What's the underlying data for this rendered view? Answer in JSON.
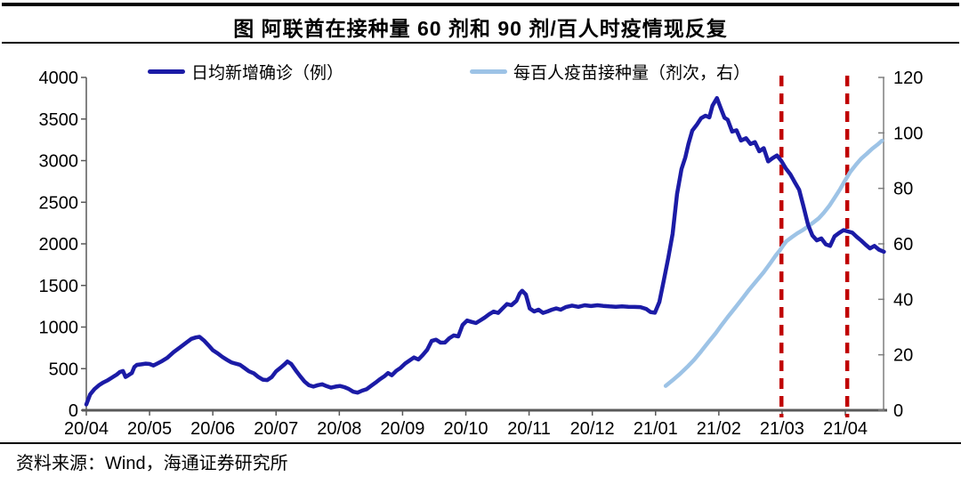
{
  "header": {
    "title": "图 阿联酋在接种量 60 剂和 90 剂/百人时疫情现反复"
  },
  "footer": {
    "source": "资料来源：Wind，海通证券研究所"
  },
  "colors": {
    "confirmed_line": "#1b1ba6",
    "vaccine_line": "#9dc3e6",
    "marker_line": "#c00000",
    "axis": "#595959",
    "right_axis": "#7f7f7f",
    "text": "#000000"
  },
  "chart_data": {
    "type": "line",
    "title": "图 阿联酋在接种量 60 剂和 90 剂/百人时疫情现反复",
    "x_axis": {
      "tick_labels": [
        "20/04",
        "20/05",
        "20/06",
        "20/07",
        "20/08",
        "20/09",
        "20/10",
        "20/11",
        "20/12",
        "21/01",
        "21/02",
        "21/03",
        "21/04"
      ],
      "range": [
        0,
        12.61
      ],
      "grid": false
    },
    "y_left": {
      "ticks": [
        0,
        500,
        1000,
        1500,
        2000,
        2500,
        3000,
        3500,
        4000
      ],
      "range": [
        0,
        4000
      ]
    },
    "y_right": {
      "ticks": [
        0,
        20,
        40,
        60,
        80,
        100,
        120
      ],
      "range": [
        0,
        120
      ]
    },
    "legend_position": "top",
    "markers": [
      {
        "type": "vline",
        "x": 10.99,
        "note": "at 21/03, ~60 doses per 100"
      },
      {
        "type": "vline",
        "x": 12.03,
        "note": "at 21/04, ~90 doses per 100"
      }
    ],
    "series": [
      {
        "name": "日均新增确诊（例）",
        "axis": "left",
        "color": "#1b1ba6",
        "points": [
          [
            0.0,
            70
          ],
          [
            0.06,
            190
          ],
          [
            0.13,
            255
          ],
          [
            0.2,
            300
          ],
          [
            0.27,
            335
          ],
          [
            0.34,
            362
          ],
          [
            0.41,
            395
          ],
          [
            0.48,
            428
          ],
          [
            0.53,
            460
          ],
          [
            0.58,
            472
          ],
          [
            0.62,
            400
          ],
          [
            0.66,
            418
          ],
          [
            0.72,
            448
          ],
          [
            0.76,
            520
          ],
          [
            0.8,
            545
          ],
          [
            0.87,
            552
          ],
          [
            0.94,
            560
          ],
          [
            1.0,
            556
          ],
          [
            1.06,
            538
          ],
          [
            1.13,
            565
          ],
          [
            1.2,
            592
          ],
          [
            1.28,
            630
          ],
          [
            1.38,
            698
          ],
          [
            1.48,
            755
          ],
          [
            1.58,
            812
          ],
          [
            1.66,
            858
          ],
          [
            1.73,
            875
          ],
          [
            1.79,
            882
          ],
          [
            1.86,
            838
          ],
          [
            1.93,
            782
          ],
          [
            2.0,
            722
          ],
          [
            2.07,
            688
          ],
          [
            2.15,
            642
          ],
          [
            2.22,
            608
          ],
          [
            2.29,
            576
          ],
          [
            2.36,
            560
          ],
          [
            2.43,
            547
          ],
          [
            2.5,
            508
          ],
          [
            2.57,
            468
          ],
          [
            2.65,
            443
          ],
          [
            2.72,
            400
          ],
          [
            2.79,
            368
          ],
          [
            2.86,
            363
          ],
          [
            2.93,
            398
          ],
          [
            3.0,
            468
          ],
          [
            3.07,
            510
          ],
          [
            3.14,
            556
          ],
          [
            3.18,
            586
          ],
          [
            3.24,
            556
          ],
          [
            3.31,
            480
          ],
          [
            3.38,
            410
          ],
          [
            3.45,
            345
          ],
          [
            3.52,
            300
          ],
          [
            3.59,
            285
          ],
          [
            3.66,
            302
          ],
          [
            3.73,
            312
          ],
          [
            3.8,
            290
          ],
          [
            3.87,
            272
          ],
          [
            3.94,
            284
          ],
          [
            4.01,
            292
          ],
          [
            4.08,
            278
          ],
          [
            4.15,
            256
          ],
          [
            4.22,
            222
          ],
          [
            4.29,
            212
          ],
          [
            4.36,
            235
          ],
          [
            4.43,
            252
          ],
          [
            4.5,
            292
          ],
          [
            4.57,
            330
          ],
          [
            4.64,
            372
          ],
          [
            4.71,
            408
          ],
          [
            4.77,
            447
          ],
          [
            4.83,
            420
          ],
          [
            4.9,
            474
          ],
          [
            4.97,
            510
          ],
          [
            5.04,
            562
          ],
          [
            5.11,
            598
          ],
          [
            5.18,
            634
          ],
          [
            5.25,
            610
          ],
          [
            5.32,
            665
          ],
          [
            5.39,
            727
          ],
          [
            5.46,
            833
          ],
          [
            5.53,
            848
          ],
          [
            5.6,
            813
          ],
          [
            5.67,
            814
          ],
          [
            5.74,
            866
          ],
          [
            5.81,
            900
          ],
          [
            5.88,
            888
          ],
          [
            5.95,
            1026
          ],
          [
            6.02,
            1078
          ],
          [
            6.09,
            1062
          ],
          [
            6.16,
            1048
          ],
          [
            6.23,
            1080
          ],
          [
            6.3,
            1114
          ],
          [
            6.37,
            1154
          ],
          [
            6.44,
            1186
          ],
          [
            6.51,
            1170
          ],
          [
            6.58,
            1222
          ],
          [
            6.65,
            1276
          ],
          [
            6.72,
            1262
          ],
          [
            6.8,
            1316
          ],
          [
            6.85,
            1400
          ],
          [
            6.89,
            1436
          ],
          [
            6.95,
            1390
          ],
          [
            7.01,
            1224
          ],
          [
            7.08,
            1187
          ],
          [
            7.15,
            1209
          ],
          [
            7.22,
            1170
          ],
          [
            7.29,
            1187
          ],
          [
            7.36,
            1209
          ],
          [
            7.43,
            1223
          ],
          [
            7.5,
            1209
          ],
          [
            7.58,
            1240
          ],
          [
            7.68,
            1258
          ],
          [
            7.78,
            1243
          ],
          [
            7.88,
            1262
          ],
          [
            7.98,
            1252
          ],
          [
            8.08,
            1262
          ],
          [
            8.17,
            1255
          ],
          [
            8.27,
            1248
          ],
          [
            8.37,
            1244
          ],
          [
            8.47,
            1248
          ],
          [
            8.57,
            1244
          ],
          [
            8.67,
            1242
          ],
          [
            8.76,
            1240
          ],
          [
            8.85,
            1218
          ],
          [
            8.92,
            1180
          ],
          [
            8.99,
            1172
          ],
          [
            9.06,
            1300
          ],
          [
            9.13,
            1560
          ],
          [
            9.2,
            1830
          ],
          [
            9.27,
            2120
          ],
          [
            9.34,
            2600
          ],
          [
            9.41,
            2900
          ],
          [
            9.47,
            3040
          ],
          [
            9.52,
            3200
          ],
          [
            9.58,
            3360
          ],
          [
            9.65,
            3430
          ],
          [
            9.72,
            3510
          ],
          [
            9.79,
            3540
          ],
          [
            9.85,
            3520
          ],
          [
            9.9,
            3660
          ],
          [
            9.97,
            3752
          ],
          [
            10.03,
            3630
          ],
          [
            10.09,
            3515
          ],
          [
            10.14,
            3492
          ],
          [
            10.21,
            3350
          ],
          [
            10.28,
            3365
          ],
          [
            10.35,
            3242
          ],
          [
            10.43,
            3270
          ],
          [
            10.5,
            3200
          ],
          [
            10.57,
            3222
          ],
          [
            10.64,
            3112
          ],
          [
            10.71,
            3150
          ],
          [
            10.78,
            2990
          ],
          [
            10.85,
            3030
          ],
          [
            10.92,
            3062
          ],
          [
            10.99,
            2995
          ],
          [
            11.06,
            2905
          ],
          [
            11.13,
            2835
          ],
          [
            11.2,
            2742
          ],
          [
            11.27,
            2650
          ],
          [
            11.34,
            2445
          ],
          [
            11.41,
            2230
          ],
          [
            11.48,
            2100
          ],
          [
            11.55,
            2042
          ],
          [
            11.62,
            2065
          ],
          [
            11.69,
            1995
          ],
          [
            11.76,
            1975
          ],
          [
            11.83,
            2090
          ],
          [
            11.9,
            2130
          ],
          [
            11.97,
            2165
          ],
          [
            12.04,
            2150
          ],
          [
            12.11,
            2135
          ],
          [
            12.18,
            2085
          ],
          [
            12.25,
            2040
          ],
          [
            12.32,
            1990
          ],
          [
            12.39,
            1945
          ],
          [
            12.46,
            1975
          ],
          [
            12.53,
            1930
          ],
          [
            12.61,
            1905
          ]
        ]
      },
      {
        "name": "每百人疫苗接种量（剂次，右）",
        "axis": "right",
        "color": "#9dc3e6",
        "points": [
          [
            9.16,
            8.8
          ],
          [
            9.27,
            10.8
          ],
          [
            9.38,
            13.0
          ],
          [
            9.5,
            15.6
          ],
          [
            9.61,
            18.2
          ],
          [
            9.72,
            21.2
          ],
          [
            9.83,
            24.4
          ],
          [
            9.95,
            27.8
          ],
          [
            10.03,
            30.3
          ],
          [
            10.14,
            33.6
          ],
          [
            10.26,
            37.0
          ],
          [
            10.37,
            40.2
          ],
          [
            10.48,
            43.5
          ],
          [
            10.59,
            46.5
          ],
          [
            10.71,
            49.8
          ],
          [
            10.82,
            53.2
          ],
          [
            10.9,
            55.8
          ],
          [
            10.96,
            57.5
          ],
          [
            11.02,
            59.5
          ],
          [
            11.07,
            61.0
          ],
          [
            11.16,
            62.5
          ],
          [
            11.24,
            63.8
          ],
          [
            11.33,
            65.0
          ],
          [
            11.41,
            66.3
          ],
          [
            11.49,
            67.6
          ],
          [
            11.58,
            69.2
          ],
          [
            11.66,
            71.2
          ],
          [
            11.75,
            73.8
          ],
          [
            11.83,
            76.6
          ],
          [
            11.92,
            79.8
          ],
          [
            12.0,
            83.0
          ],
          [
            12.08,
            86.0
          ],
          [
            12.17,
            88.6
          ],
          [
            12.25,
            90.7
          ],
          [
            12.34,
            92.5
          ],
          [
            12.42,
            94.2
          ],
          [
            12.51,
            95.8
          ],
          [
            12.58,
            97.2
          ]
        ]
      }
    ]
  }
}
